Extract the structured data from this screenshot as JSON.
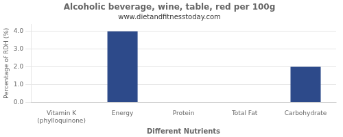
{
  "chart_data": {
    "type": "bar",
    "title": "Alcoholic beverage, wine, table, red per 100g",
    "subtitle": "www.dietandfitnesstoday.com",
    "xlabel": "Different Nutrients",
    "ylabel": "Percentage of RDH (%)",
    "categories": [
      "Vitamin K (phylloquinone)",
      "Energy",
      "Protein",
      "Total Fat",
      "Carbohydrate"
    ],
    "values": [
      0.0,
      4.0,
      0.0,
      0.0,
      2.0
    ],
    "color": "#2d4a8a",
    "ylim": [
      0,
      4.4
    ],
    "yticks": [
      {
        "value": 0,
        "label": "0.0"
      },
      {
        "value": 1,
        "label": "1.0"
      },
      {
        "value": 2,
        "label": "2.0"
      },
      {
        "value": 3,
        "label": "3.0"
      },
      {
        "value": 4,
        "label": "4.0"
      }
    ],
    "grid": true
  }
}
